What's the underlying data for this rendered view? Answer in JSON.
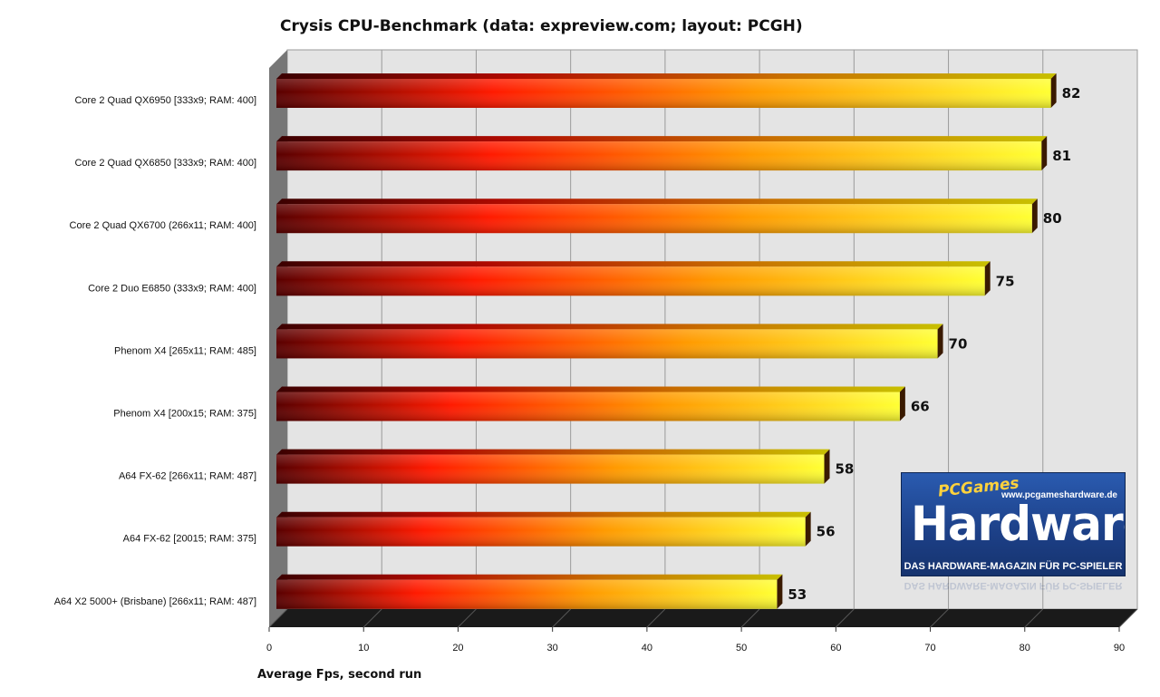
{
  "chart_data": {
    "type": "bar",
    "orientation": "horizontal",
    "title": "Crysis CPU-Benchmark (data: expreview.com; layout: PCGH)",
    "xlabel": "Average Fps, second run",
    "ylabel": "",
    "xlim": [
      0,
      90
    ],
    "xticks": [
      0,
      10,
      20,
      30,
      40,
      50,
      60,
      70,
      80,
      90
    ],
    "grid": true,
    "categories": [
      "Core 2 Quad  QX6950 [333x9; RAM: 400]",
      "Core 2 Quad  QX6850 [333x9; RAM: 400]",
      "Core 2 Quad  QX6700 (266x11; RAM: 400]",
      "Core 2 Duo E6850 (333x9; RAM: 400]",
      "Phenom  X4 [265x11; RAM: 485]",
      "Phenom  X4 [200x15; RAM: 375]",
      "A64 FX-62 [266x11; RAM: 487]",
      "A64 FX-62 [20015; RAM: 375]",
      "A64 X2 5000+ (Brisbane)  [266x11; RAM: 487]"
    ],
    "values": [
      82,
      81,
      80,
      75,
      70,
      66,
      58,
      56,
      53
    ],
    "colors": {
      "bar_start": "#5a0000",
      "bar_mid": "#ff1a00",
      "bar_end": "#ffff33",
      "plot_background": "#e4e4e4",
      "floor": "#1a1a1a"
    }
  },
  "logo": {
    "brand_top": "PCGames",
    "url": "www.pcgameshardware.de",
    "brand_main": "Hardware",
    "tagline": "DAS HARDWARE-MAGAZIN FÜR PC-SPIELER"
  }
}
